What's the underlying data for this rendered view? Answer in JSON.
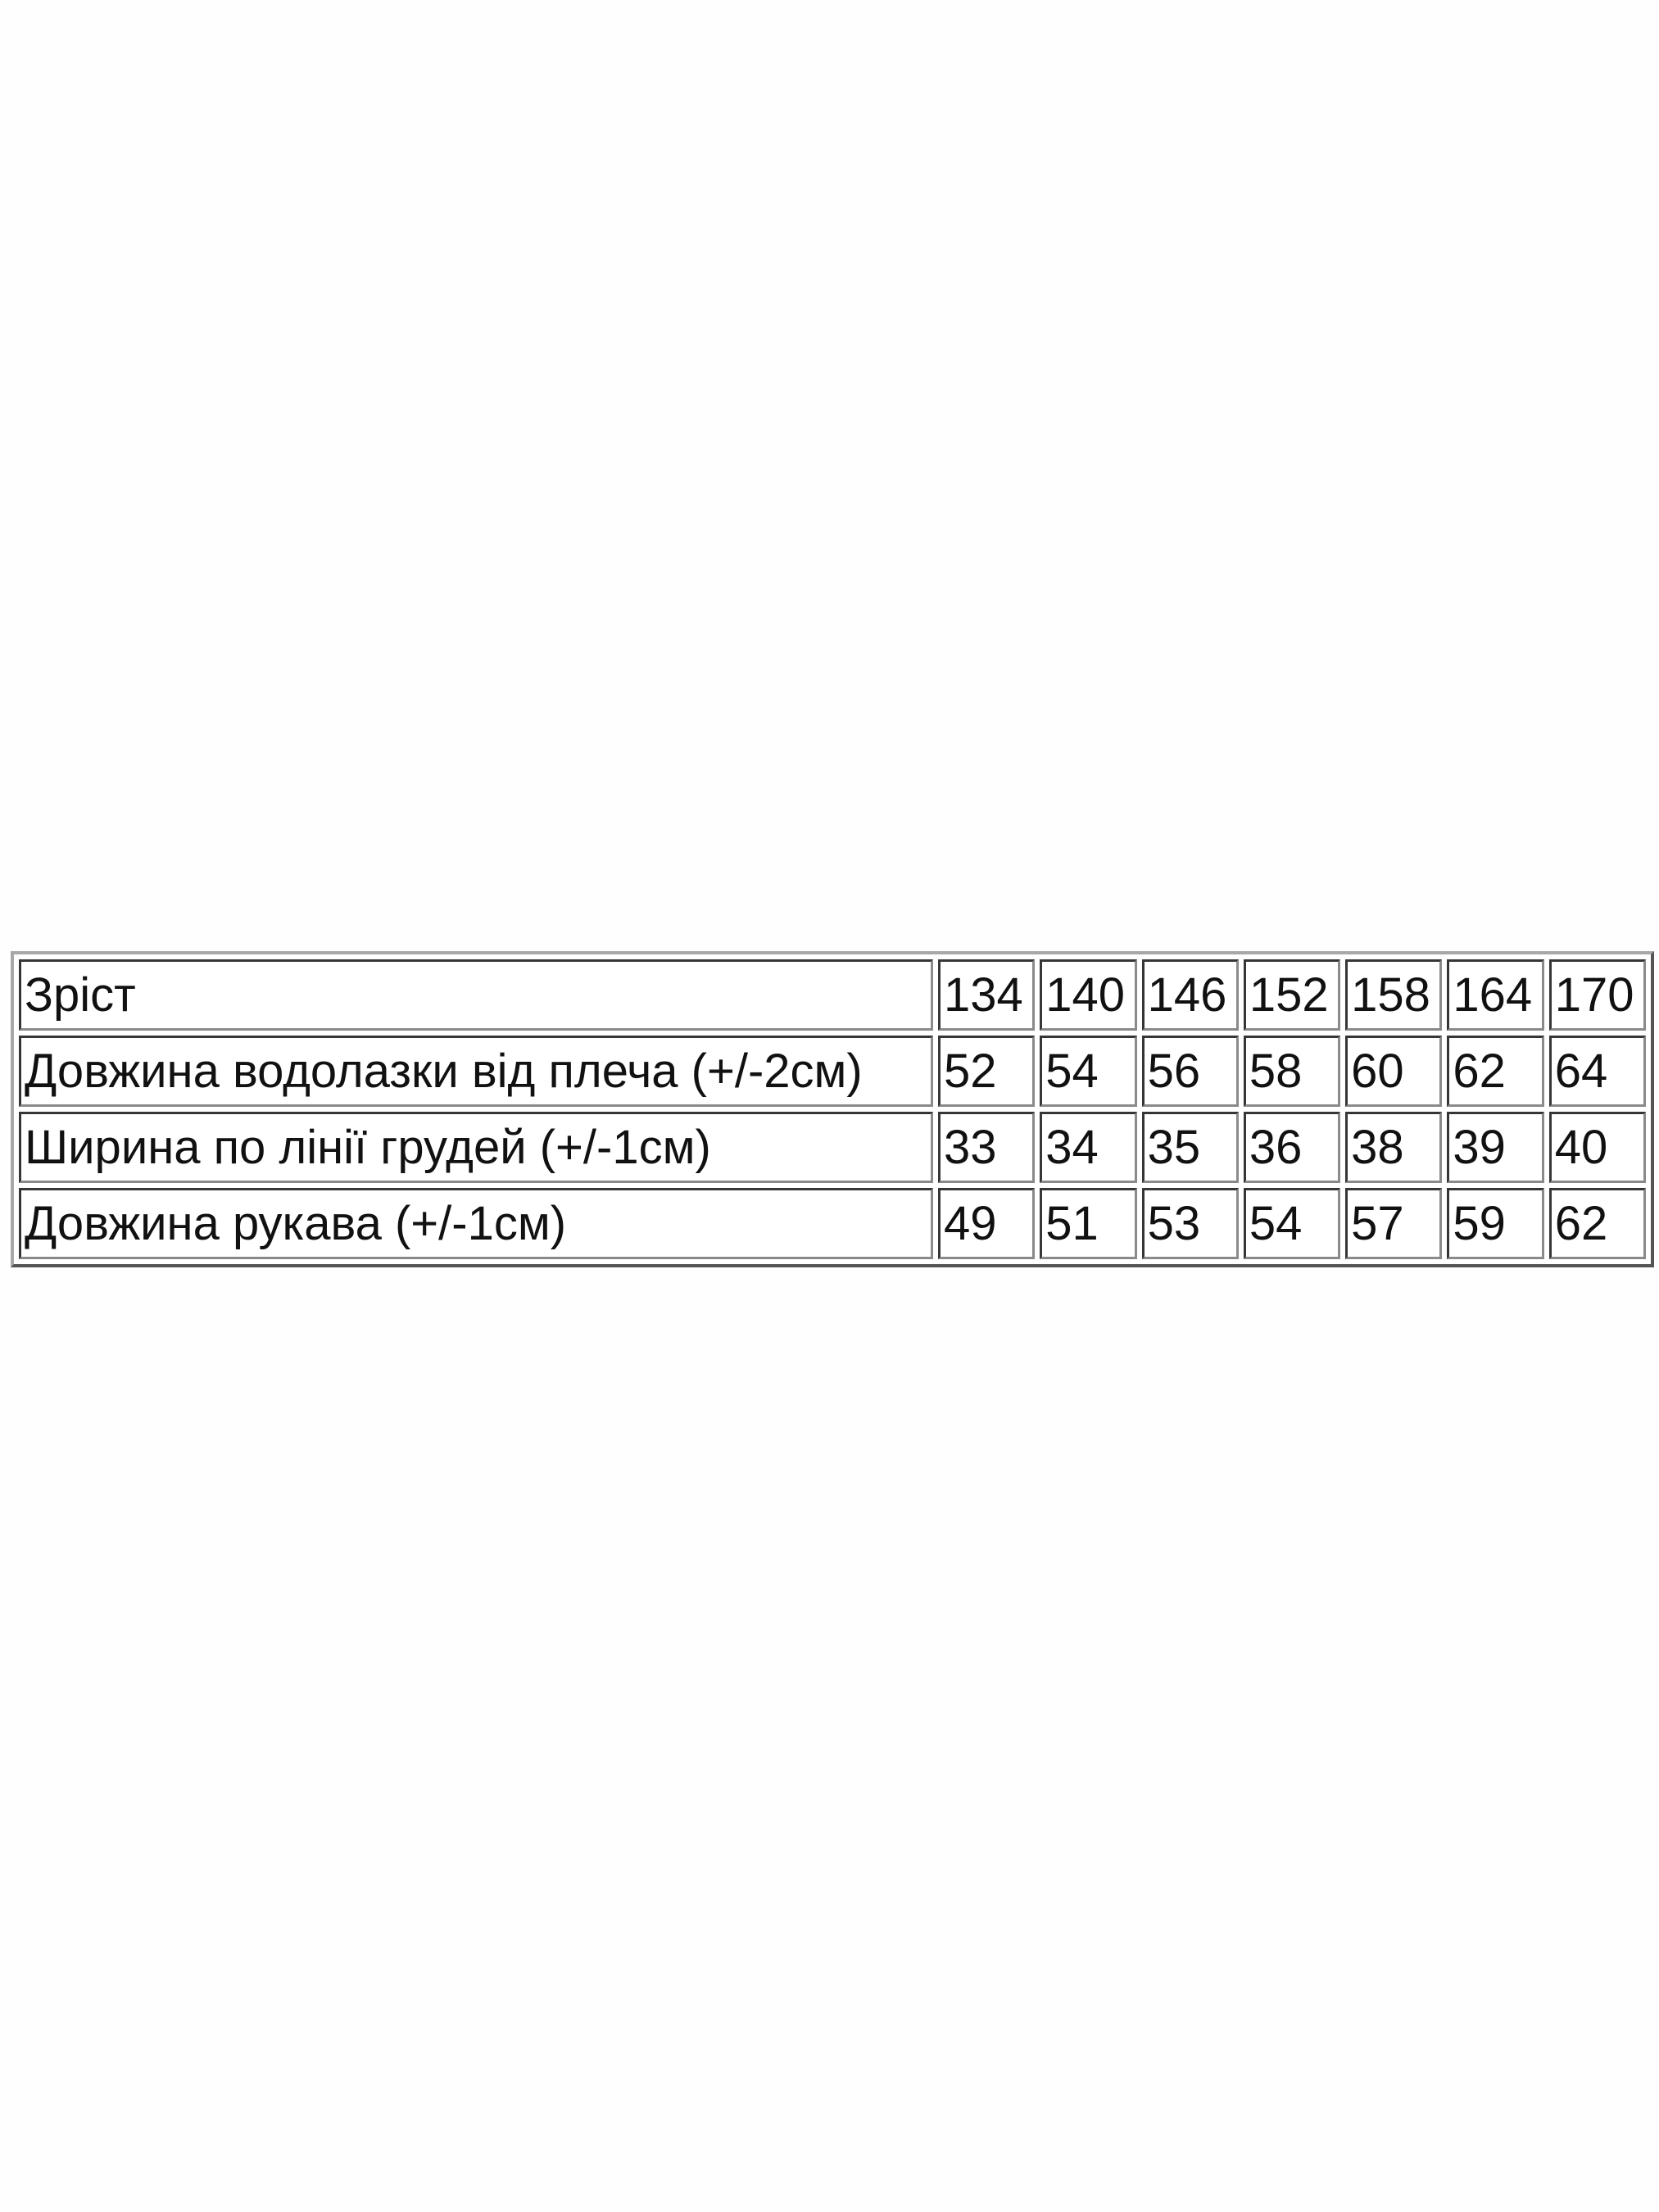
{
  "table": {
    "rows": [
      {
        "label": "Зріст",
        "values": [
          "134",
          "140",
          "146",
          "152",
          "158",
          "164",
          "170"
        ]
      },
      {
        "label": "Довжина водолазки від плеча (+/-2см)",
        "values": [
          "52",
          "54",
          "56",
          "58",
          "60",
          "62",
          "64"
        ]
      },
      {
        "label": "Ширина по лінії грудей (+/-1см)",
        "values": [
          "33",
          "34",
          "35",
          "36",
          "38",
          "39",
          "40"
        ]
      },
      {
        "label": "Довжина рукава (+/-1см)",
        "values": [
          "49",
          "51",
          "53",
          "54",
          "57",
          "59",
          "62"
        ]
      }
    ]
  }
}
